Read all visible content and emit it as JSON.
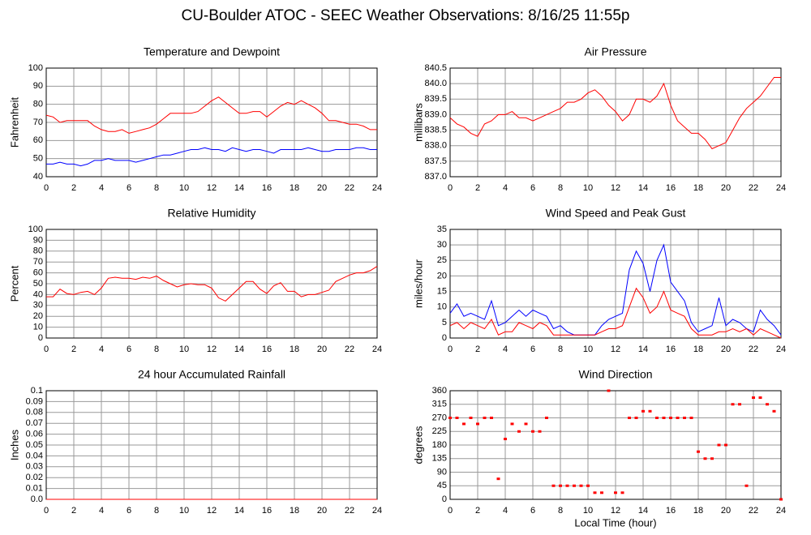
{
  "title": "CU-Boulder ATOC - SEEC Weather Observations: 8/16/25 11:55p",
  "chart_data": [
    {
      "type": "line",
      "title": "Temperature and Dewpoint",
      "ylabel": "Fahrenheit",
      "x": [
        0,
        0.5,
        1,
        1.5,
        2,
        2.5,
        3,
        3.5,
        4,
        4.5,
        5,
        5.5,
        6,
        6.5,
        7,
        7.5,
        8,
        8.5,
        9,
        9.5,
        10,
        10.5,
        11,
        11.5,
        12,
        12.5,
        13,
        13.5,
        14,
        14.5,
        15,
        15.5,
        16,
        16.5,
        17,
        17.5,
        18,
        18.5,
        19,
        19.5,
        20,
        20.5,
        21,
        21.5,
        22,
        22.5,
        23,
        23.5,
        24
      ],
      "series": [
        {
          "color": "#ff0000",
          "values": [
            74,
            73,
            70,
            71,
            71,
            71,
            71,
            68,
            66,
            65,
            65,
            66,
            64,
            65,
            66,
            67,
            69,
            72,
            75,
            75,
            75,
            75,
            76,
            79,
            82,
            84,
            81,
            78,
            75,
            75,
            76,
            76,
            73,
            76,
            79,
            81,
            80,
            82,
            80,
            78,
            75,
            71,
            71,
            70,
            69,
            69,
            68,
            66,
            66
          ]
        },
        {
          "color": "#0000ff",
          "values": [
            47,
            47,
            48,
            47,
            47,
            46,
            47,
            49,
            49,
            50,
            49,
            49,
            49,
            48,
            49,
            50,
            51,
            52,
            52,
            53,
            54,
            55,
            55,
            56,
            55,
            55,
            54,
            56,
            55,
            54,
            55,
            55,
            54,
            53,
            55,
            55,
            55,
            55,
            56,
            55,
            54,
            54,
            55,
            55,
            55,
            56,
            56,
            55,
            55
          ]
        }
      ],
      "xlim": [
        0,
        24
      ],
      "xticks": [
        0,
        2,
        4,
        6,
        8,
        10,
        12,
        14,
        16,
        18,
        20,
        22,
        24
      ],
      "ylim": [
        40,
        100
      ],
      "yticks": [
        40,
        50,
        60,
        70,
        80,
        90,
        100
      ],
      "grid": true
    },
    {
      "type": "line",
      "title": "Air Pressure",
      "ylabel": "millibars",
      "x": [
        0,
        0.5,
        1,
        1.5,
        2,
        2.5,
        3,
        3.5,
        4,
        4.5,
        5,
        5.5,
        6,
        6.5,
        7,
        7.5,
        8,
        8.5,
        9,
        9.5,
        10,
        10.5,
        11,
        11.5,
        12,
        12.5,
        13,
        13.5,
        14,
        14.5,
        15,
        15.5,
        16,
        16.5,
        17,
        17.5,
        18,
        18.5,
        19,
        19.5,
        20,
        20.5,
        21,
        21.5,
        22,
        22.5,
        23,
        23.5,
        24
      ],
      "series": [
        {
          "color": "#ff0000",
          "values": [
            838.9,
            838.7,
            838.6,
            838.4,
            838.3,
            838.7,
            838.8,
            839.0,
            839.0,
            839.1,
            838.9,
            838.9,
            838.8,
            838.9,
            839.0,
            839.1,
            839.2,
            839.4,
            839.4,
            839.5,
            839.7,
            839.8,
            839.6,
            839.3,
            839.1,
            838.8,
            839.0,
            839.5,
            839.5,
            839.4,
            839.6,
            840.0,
            839.3,
            838.8,
            838.6,
            838.4,
            838.4,
            838.2,
            837.9,
            838.0,
            838.1,
            838.5,
            838.9,
            839.2,
            839.4,
            839.6,
            839.9,
            840.2,
            840.2
          ]
        }
      ],
      "xlim": [
        0,
        24
      ],
      "xticks": [
        0,
        2,
        4,
        6,
        8,
        10,
        12,
        14,
        16,
        18,
        20,
        22,
        24
      ],
      "ylim": [
        837,
        840.5
      ],
      "yticks": [
        {
          "value": 837,
          "label": "837.0"
        },
        837.5,
        {
          "value": 838,
          "label": "838.0"
        },
        838.5,
        {
          "value": 839,
          "label": "839.0"
        },
        839.5,
        {
          "value": 840,
          "label": "840.0"
        },
        840.5
      ],
      "grid": true
    },
    {
      "type": "line",
      "title": "Relative Humidity",
      "ylabel": "Percent",
      "x": [
        0,
        0.5,
        1,
        1.5,
        2,
        2.5,
        3,
        3.5,
        4,
        4.5,
        5,
        5.5,
        6,
        6.5,
        7,
        7.5,
        8,
        8.5,
        9,
        9.5,
        10,
        10.5,
        11,
        11.5,
        12,
        12.5,
        13,
        13.5,
        14,
        14.5,
        15,
        15.5,
        16,
        16.5,
        17,
        17.5,
        18,
        18.5,
        19,
        19.5,
        20,
        20.5,
        21,
        21.5,
        22,
        22.5,
        23,
        23.5,
        24
      ],
      "series": [
        {
          "color": "#ff0000",
          "values": [
            38,
            38,
            45,
            41,
            40,
            42,
            43,
            40,
            46,
            55,
            56,
            55,
            55,
            54,
            56,
            55,
            57,
            53,
            50,
            47,
            49,
            50,
            49,
            49,
            46,
            37,
            34,
            40,
            46,
            52,
            52,
            45,
            41,
            48,
            51,
            43,
            43,
            38,
            40,
            40,
            42,
            44,
            52,
            55,
            58,
            60,
            60,
            62,
            66
          ]
        }
      ],
      "xlim": [
        0,
        24
      ],
      "xticks": [
        0,
        2,
        4,
        6,
        8,
        10,
        12,
        14,
        16,
        18,
        20,
        22,
        24
      ],
      "ylim": [
        0,
        100
      ],
      "yticks": [
        0,
        10,
        20,
        30,
        40,
        50,
        60,
        70,
        80,
        90,
        100
      ],
      "grid": true
    },
    {
      "type": "line",
      "title": "Wind Speed and Peak Gust",
      "ylabel": "miles/hour",
      "x": [
        0,
        0.5,
        1,
        1.5,
        2,
        2.5,
        3,
        3.5,
        4,
        4.5,
        5,
        5.5,
        6,
        6.5,
        7,
        7.5,
        8,
        8.5,
        9,
        9.5,
        10,
        10.5,
        11,
        11.5,
        12,
        12.5,
        13,
        13.5,
        14,
        14.5,
        15,
        15.5,
        16,
        16.5,
        17,
        17.5,
        18,
        18.5,
        19,
        19.5,
        20,
        20.5,
        21,
        21.5,
        22,
        22.5,
        23,
        23.5,
        24
      ],
      "series": [
        {
          "color": "#0000ff",
          "values": [
            8,
            11,
            7,
            8,
            7,
            6,
            12,
            4,
            5,
            7,
            9,
            7,
            9,
            8,
            7,
            3,
            4,
            2,
            1,
            1,
            1,
            1,
            4,
            6,
            7,
            8,
            22,
            28,
            24,
            15,
            25,
            30,
            18,
            15,
            12,
            5,
            2,
            3,
            4,
            13,
            4,
            6,
            5,
            3,
            2,
            9,
            6,
            4,
            1
          ]
        },
        {
          "color": "#ff0000",
          "values": [
            4,
            5,
            3,
            5,
            4,
            3,
            6,
            1,
            2,
            2,
            5,
            4,
            3,
            5,
            4,
            1,
            1,
            1,
            1,
            1,
            1,
            1,
            2,
            3,
            3,
            4,
            10,
            16,
            13,
            8,
            10,
            15,
            9,
            8,
            7,
            3,
            1,
            1,
            1,
            2,
            2,
            3,
            2,
            3,
            1,
            3,
            2,
            1,
            0
          ]
        }
      ],
      "xlim": [
        0,
        24
      ],
      "xticks": [
        0,
        2,
        4,
        6,
        8,
        10,
        12,
        14,
        16,
        18,
        20,
        22,
        24
      ],
      "ylim": [
        0,
        35
      ],
      "yticks": [
        0,
        5,
        10,
        15,
        20,
        25,
        30,
        35
      ],
      "grid": true
    },
    {
      "type": "line",
      "title": "24 hour Accumulated Rainfall",
      "ylabel": "Inches",
      "x": [
        0,
        24
      ],
      "series": [
        {
          "color": "#ff0000",
          "values": [
            0,
            0
          ]
        }
      ],
      "xlim": [
        0,
        24
      ],
      "xticks": [
        0,
        2,
        4,
        6,
        8,
        10,
        12,
        14,
        16,
        18,
        20,
        22,
        24
      ],
      "ylim": [
        0,
        0.1
      ],
      "yticks": [
        {
          "value": 0,
          "label": "0.0"
        },
        0.01,
        0.02,
        0.03,
        0.04,
        0.05,
        0.06,
        0.07,
        0.08,
        0.09,
        0.1
      ],
      "grid": true
    },
    {
      "type": "scatter",
      "title": "Wind Direction",
      "ylabel": "degrees",
      "xlabel": "Local Time (hour)",
      "x": [
        0,
        0.5,
        1,
        1.5,
        2,
        2.5,
        3,
        3.5,
        4,
        4.5,
        5,
        5.5,
        6,
        6.5,
        7,
        7.5,
        8,
        8.5,
        9,
        9.5,
        10,
        10.5,
        11,
        11.5,
        12,
        12.5,
        13,
        13.5,
        14,
        14.5,
        15,
        15.5,
        16,
        16.5,
        17,
        17.5,
        18,
        18.5,
        19,
        19.5,
        20,
        20.5,
        21,
        21.5,
        22,
        22.5,
        23,
        23.5,
        24
      ],
      "series": [
        {
          "color": "#ff0000",
          "values": [
            270,
            270,
            250,
            270,
            250,
            270,
            270,
            68,
            200,
            250,
            225,
            250,
            225,
            225,
            270,
            45,
            45,
            45,
            45,
            45,
            45,
            22,
            22,
            360,
            22,
            22,
            270,
            270,
            292,
            292,
            270,
            270,
            270,
            270,
            270,
            270,
            158,
            135,
            135,
            180,
            180,
            315,
            315,
            45,
            337,
            337,
            315,
            292,
            0
          ]
        }
      ],
      "xlim": [
        0,
        24
      ],
      "xticks": [
        0,
        2,
        4,
        6,
        8,
        10,
        12,
        14,
        16,
        18,
        20,
        22,
        24
      ],
      "ylim": [
        0,
        360
      ],
      "yticks": [
        0,
        45,
        90,
        135,
        180,
        225,
        270,
        315,
        360
      ],
      "grid": true
    }
  ]
}
